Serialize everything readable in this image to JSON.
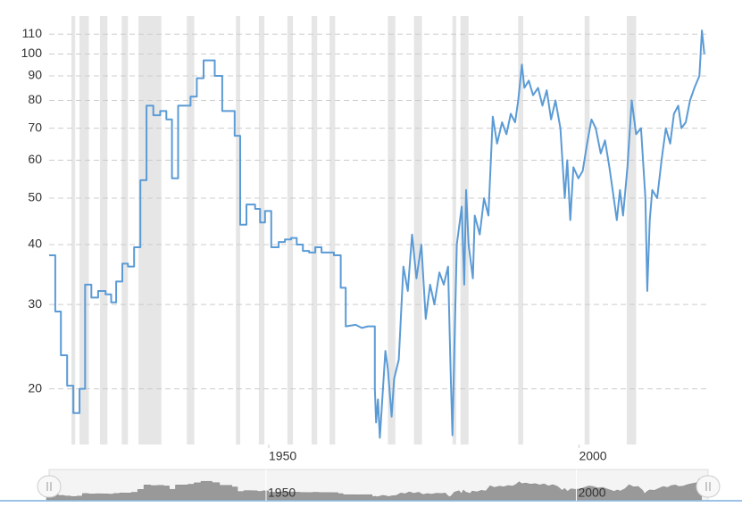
{
  "chart_data": {
    "type": "line",
    "log_y": true,
    "grid": true,
    "color": "#5b9bd5",
    "band_color": "#e6e6e6",
    "xlim": [
      1914.6,
      2020.8
    ],
    "ylim": [
      15.3,
      120
    ],
    "xticks": [
      1950,
      2000
    ],
    "yticks": [
      20,
      30,
      40,
      50,
      60,
      70,
      80,
      90,
      100,
      110
    ],
    "shaded_bands": [
      [
        1918.2,
        1918.8
      ],
      [
        1919.5,
        1921.0
      ],
      [
        1922.8,
        1924.0
      ],
      [
        1926.3,
        1927.3
      ],
      [
        1929.0,
        1932.7
      ],
      [
        1936.8,
        1938.0
      ],
      [
        1944.7,
        1945.4
      ],
      [
        1948.4,
        1949.3
      ],
      [
        1953.0,
        1953.9
      ],
      [
        1956.9,
        1957.8
      ],
      [
        1959.8,
        1960.7
      ],
      [
        1969.2,
        1970.4
      ],
      [
        1973.4,
        1974.7
      ],
      [
        1979.6,
        1980.2
      ],
      [
        1980.9,
        1982.2
      ],
      [
        1990.2,
        1991.0
      ],
      [
        2000.9,
        2001.7
      ],
      [
        2007.7,
        2009.2
      ]
    ],
    "x": [
      1914.6,
      1915.6,
      1915.6,
      1916.5,
      1916.5,
      1917.5,
      1917.5,
      1918.5,
      1918.5,
      1919.5,
      1919.5,
      1920.4,
      1920.4,
      1921.4,
      1921.4,
      1922.5,
      1922.5,
      1923.7,
      1923.7,
      1924.6,
      1924.6,
      1925.4,
      1925.4,
      1926.4,
      1926.4,
      1927.3,
      1927.3,
      1928.3,
      1928.3,
      1929.3,
      1929.3,
      1930.3,
      1930.3,
      1931.4,
      1931.4,
      1932.5,
      1932.5,
      1933.5,
      1933.5,
      1934.4,
      1934.4,
      1935.4,
      1935.4,
      1937.4,
      1937.4,
      1938.4,
      1938.4,
      1939.5,
      1939.5,
      1941.3,
      1941.3,
      1942.5,
      1942.5,
      1944.5,
      1944.5,
      1945.4,
      1945.4,
      1946.4,
      1946.4,
      1947.8,
      1947.8,
      1948.6,
      1948.6,
      1949.4,
      1949.4,
      1950.4,
      1950.4,
      1951.6,
      1951.6,
      1952.6,
      1952.6,
      1953.6,
      1953.6,
      1954.5,
      1954.5,
      1955.5,
      1955.5,
      1956.5,
      1956.5,
      1957.5,
      1957.5,
      1958.5,
      1958.5,
      1960.5,
      1960.5,
      1961.6,
      1961.6,
      1962.4,
      1962.4,
      1964,
      1965,
      1966,
      1967.1,
      1967.1,
      1967.3,
      1967.6,
      1967.9,
      1968.4,
      1968.8,
      1969.2,
      1969.8,
      1970.2,
      1970.95,
      1971.7,
      1972.4,
      1973.1,
      1973.8,
      1974.6,
      1975.3,
      1976.0,
      1976.7,
      1977.5,
      1978.2,
      1978.9,
      1979.3,
      1979.6,
      1979.9,
      1980.3,
      1981.1,
      1981.5,
      1981.8,
      1982.2,
      1982.9,
      1983.2,
      1984.0,
      1984.7,
      1985.4,
      1986.1,
      1986.8,
      1987.6,
      1988.3,
      1989.0,
      1989.7,
      1990.2,
      1990.8,
      1991.2,
      1991.9,
      1992.6,
      1993.4,
      1994.1,
      1994.8,
      1995.5,
      1996.2,
      1997.0,
      1997.7,
      1998.1,
      1998.6,
      1999.1,
      1999.9,
      2000.6,
      2001.3,
      2002.0,
      2002.7,
      2003.5,
      2004.2,
      2004.9,
      2005.6,
      2006.1,
      2006.6,
      2007.1,
      2007.8,
      2008.5,
      2009.2,
      2010.0,
      2010.7,
      2011.0,
      2011.4,
      2011.8,
      2012.6,
      2013.3,
      2014.0,
      2014.7,
      2015.3,
      2016.0,
      2016.5,
      2017.2,
      2017.9,
      2018.6,
      2019.4,
      2019.8,
      2020.2
    ],
    "values": [
      38,
      38,
      29,
      29,
      23.5,
      23.5,
      20.3,
      20.3,
      17.8,
      17.8,
      20,
      20,
      33,
      33,
      31,
      31,
      32,
      32,
      31.5,
      31.5,
      30.3,
      30.3,
      33.5,
      33.5,
      36.5,
      36.5,
      36,
      36,
      39.5,
      39.5,
      54.5,
      54.5,
      78,
      78,
      74.5,
      74.5,
      76,
      76,
      73,
      73,
      55,
      55,
      78,
      78,
      81.5,
      81.5,
      89,
      89,
      97,
      97,
      90,
      90,
      76,
      76,
      67.5,
      67.5,
      44,
      44,
      48.5,
      48.5,
      47.5,
      47.5,
      44.5,
      44.5,
      47,
      47,
      39.5,
      39.5,
      40.5,
      40.5,
      41,
      41,
      41.3,
      41.3,
      40,
      40,
      38.8,
      38.8,
      38.5,
      38.5,
      39.5,
      39.5,
      38.5,
      38.5,
      38,
      38,
      32.5,
      32.5,
      27,
      27.2,
      26.8,
      27,
      27,
      20,
      17,
      19,
      15.8,
      20,
      24,
      22,
      17.5,
      21,
      23,
      36,
      32,
      42,
      34,
      40,
      28,
      33,
      30,
      35,
      33,
      36,
      22,
      16,
      24,
      40,
      48,
      33,
      52,
      40,
      34,
      46,
      42,
      50,
      46,
      74,
      65,
      72,
      68,
      75,
      72,
      80,
      95,
      85,
      88,
      82,
      85,
      78,
      84,
      73,
      80,
      70,
      50,
      60,
      45,
      58,
      55,
      57,
      65,
      73,
      70,
      62,
      66,
      58,
      50,
      45,
      52,
      46,
      58,
      80,
      68,
      70,
      50,
      32,
      45,
      52,
      50,
      60,
      70,
      65,
      75,
      78,
      70,
      72,
      80,
      85,
      90,
      112,
      100
    ]
  }
}
